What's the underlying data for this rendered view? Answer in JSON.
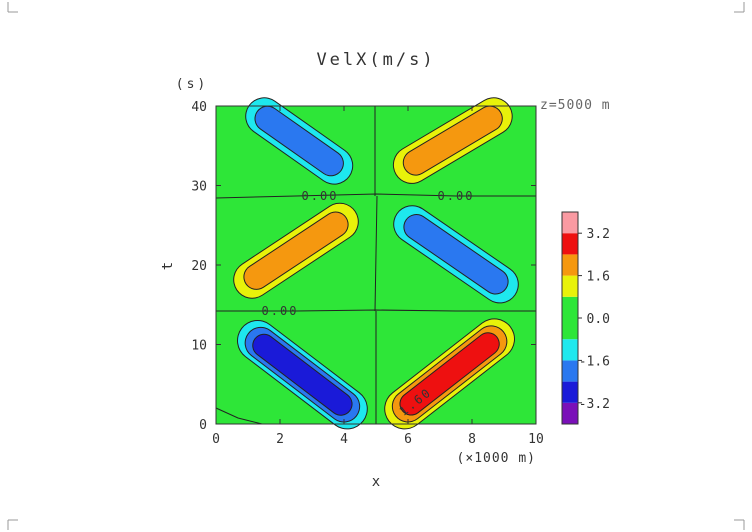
{
  "chart_data": {
    "type": "heatmap",
    "title": "VelX(m/s)",
    "xlabel": "x",
    "ylabel": "t",
    "x_unit": "(×1000 m)",
    "y_unit": "(s)",
    "annotation": "z=5000 m",
    "xlim": [
      0,
      10
    ],
    "ylim": [
      0,
      40
    ],
    "x_ticks": [
      "0",
      "2",
      "4",
      "6",
      "8",
      "10"
    ],
    "y_ticks": [
      "0",
      "10",
      "20",
      "30",
      "40"
    ],
    "contour_labels": [
      "0.00",
      "0.00",
      "0.00",
      "1.60"
    ],
    "levels": [
      -4.0,
      -3.2,
      -2.4,
      -1.6,
      -0.8,
      0.0,
      0.8,
      1.6,
      2.4,
      3.2,
      4.0
    ],
    "level_colors": [
      "#7a10b8",
      "#1a1ad8",
      "#2a78f0",
      "#1ee8ee",
      "#2ee638",
      "#2ee638",
      "#e8f20a",
      "#f5980f",
      "#ee1010",
      "#fa9aa2"
    ],
    "colorbar_ticks": [
      "3.2",
      "1.6",
      "0.0",
      "-1.6",
      "-3.2"
    ],
    "features": [
      {
        "x_start": 1.2,
        "t_start": 10.8,
        "x_end": 4.2,
        "t_end": 1.6,
        "amplitude": -3.0
      },
      {
        "x_start": 5.8,
        "t_start": 1.6,
        "x_end": 8.8,
        "t_end": 11.0,
        "amplitude": 3.0
      },
      {
        "x_start": 1.0,
        "t_start": 17.8,
        "x_end": 4.0,
        "t_end": 25.8,
        "amplitude": 2.0
      },
      {
        "x_start": 6.0,
        "t_start": 25.5,
        "x_end": 9.0,
        "t_end": 17.2,
        "amplitude": -2.0
      },
      {
        "x_start": 1.4,
        "t_start": 39.0,
        "x_end": 3.8,
        "t_end": 32.2,
        "amplitude": -2.0
      },
      {
        "x_start": 6.0,
        "t_start": 32.3,
        "x_end": 8.8,
        "t_end": 39.0,
        "amplitude": 2.0
      }
    ]
  }
}
